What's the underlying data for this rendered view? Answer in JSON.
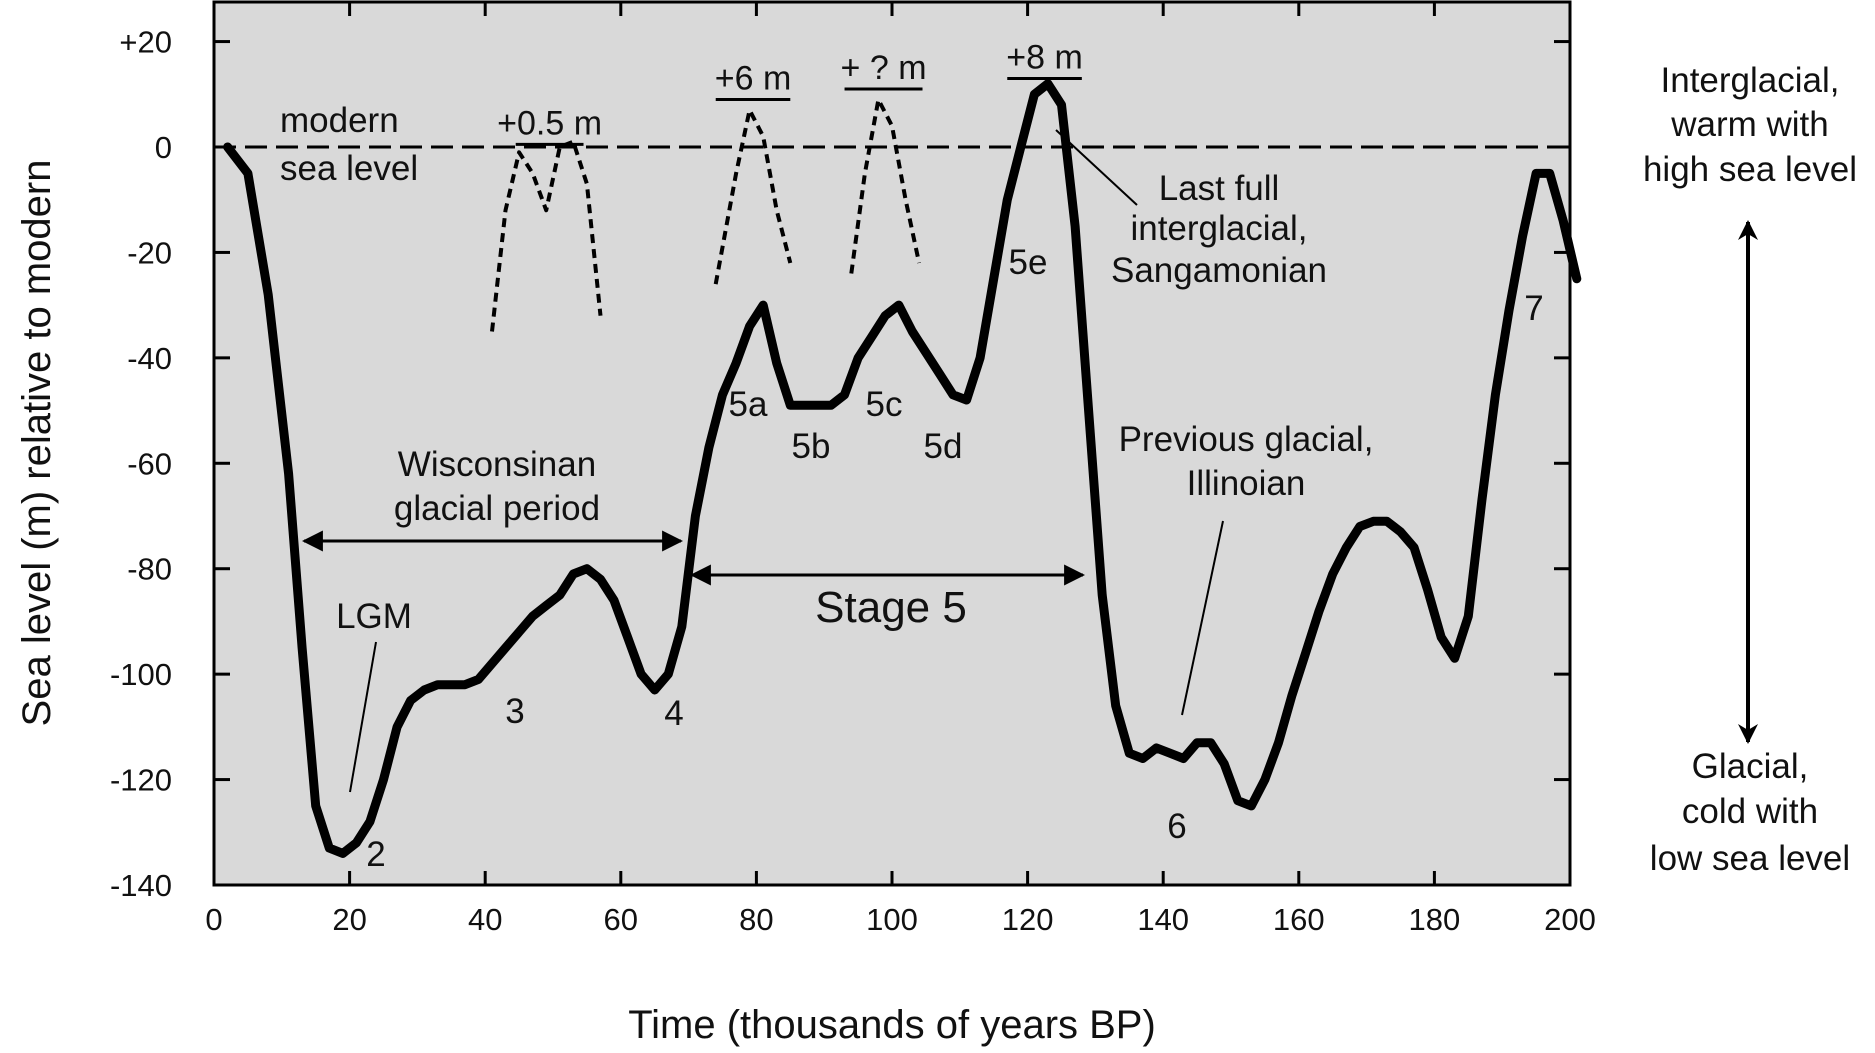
{
  "colors": {
    "plot_background": "#d9d9d9",
    "line": "#000000",
    "text": "#111111"
  },
  "chart_data": {
    "type": "line",
    "title": "",
    "xlabel": "Time (thousands of years BP)",
    "ylabel": "Sea level (m) relative to modern",
    "xlim": [
      0,
      200
    ],
    "ylim": [
      -140,
      20
    ],
    "x_ticks": [
      "0",
      "20",
      "40",
      "60",
      "80",
      "100",
      "120",
      "140",
      "160",
      "180",
      "200"
    ],
    "y_ticks": [
      "+20",
      "0",
      "-20",
      "-40",
      "-60",
      "-80",
      "-100",
      "-120",
      "-140"
    ],
    "grid": false,
    "reference_line": {
      "y": 0,
      "label": "modern sea level"
    },
    "series": [
      {
        "style": "solid",
        "x": [
          2,
          5,
          8,
          11,
          13,
          15,
          17,
          19,
          21,
          23,
          25,
          27,
          29,
          31,
          33,
          35,
          37,
          39,
          41,
          43,
          45,
          47,
          49,
          51,
          53,
          55,
          57,
          59,
          61,
          63,
          65,
          67,
          69,
          71,
          73,
          75,
          77,
          79,
          81,
          83,
          85,
          87,
          89,
          91,
          93,
          95,
          97,
          99,
          101,
          103,
          105,
          107,
          109,
          111,
          113,
          115,
          117,
          119,
          121,
          123,
          125,
          127,
          129,
          131,
          133,
          135,
          137,
          139,
          141,
          143,
          145,
          147,
          149,
          151,
          153,
          155,
          157,
          159,
          161,
          163,
          165,
          167,
          169,
          171,
          173,
          175,
          177,
          179,
          181,
          183,
          185,
          187,
          189,
          191,
          193,
          195,
          197,
          199,
          201
        ],
        "y": [
          0,
          -5,
          -28,
          -62,
          -95,
          -125,
          -133,
          -134,
          -132,
          -128,
          -120,
          -110,
          -105,
          -103,
          -102,
          -102,
          -102,
          -101,
          -98,
          -95,
          -92,
          -89,
          -87,
          -85,
          -81,
          -80,
          -82,
          -86,
          -93,
          -100,
          -103,
          -100,
          -91,
          -70,
          -57,
          -47,
          -41,
          -34,
          -30,
          -41,
          -49,
          -49,
          -49,
          -49,
          -47,
          -40,
          -36,
          -32,
          -30,
          -35,
          -39,
          -43,
          -47,
          -48,
          -40,
          -25,
          -10,
          0,
          10,
          12,
          8,
          -15,
          -50,
          -85,
          -106,
          -115,
          -116,
          -114,
          -115,
          -116,
          -113,
          -113,
          -117,
          -124,
          -125,
          -120,
          -113,
          -104,
          -96,
          -88,
          -81,
          -76,
          -72,
          -71,
          -71,
          -73,
          -76,
          -84,
          -93,
          -97,
          -89,
          -67,
          -47,
          -31,
          -17,
          -5,
          -5,
          -14,
          -25
        ]
      },
      {
        "style": "dashed",
        "note": "+0.5 m highstand",
        "x": [
          41,
          43,
          45,
          47,
          49,
          51,
          53,
          55,
          57
        ],
        "y": [
          -35,
          -12,
          -1,
          -5,
          -12,
          0,
          1,
          -7,
          -32
        ]
      },
      {
        "style": "dashed",
        "note": "+6 m highstand",
        "x": [
          74,
          77,
          79,
          81,
          83,
          85
        ],
        "y": [
          -26,
          -5,
          7,
          2,
          -12,
          -22
        ]
      },
      {
        "style": "dashed",
        "note": "+ ? m highstand",
        "x": [
          94,
          96,
          98,
          100,
          102,
          104
        ],
        "y": [
          -24,
          -5,
          9,
          4,
          -10,
          -22
        ]
      }
    ],
    "bar_annotations": [
      {
        "label": "+0.5 m",
        "x": [
          44.5,
          54.5
        ],
        "y": 0.5
      },
      {
        "label": "+6 m",
        "x": [
          74,
          85
        ],
        "y": 9
      },
      {
        "label": "+ ? m",
        "x": [
          93,
          104.5
        ],
        "y": 11
      },
      {
        "label": "+8 m",
        "x": [
          117,
          128
        ],
        "y": 13
      }
    ],
    "stage_labels": [
      "2",
      "3",
      "4",
      "5a",
      "5b",
      "5c",
      "5d",
      "5e",
      "6",
      "7"
    ],
    "annotations": {
      "modern_line_1": "modern",
      "modern_line_2": "sea level",
      "lgm": "LGM",
      "wisconsin_1": "Wisconsinan",
      "wisconsin_2": "glacial period",
      "stage5": "Stage 5",
      "last_full_1": "Last full",
      "last_full_2": "interglacial,",
      "last_full_3": "Sangamonian",
      "previous_1": "Previous glacial,",
      "previous_2": "Illinoian",
      "interglacial_1": "Interglacial,",
      "interglacial_2": "warm with",
      "interglacial_3": "high sea level",
      "glacial_1": "Glacial,",
      "glacial_2": "cold with",
      "glacial_3": "low sea level"
    }
  }
}
